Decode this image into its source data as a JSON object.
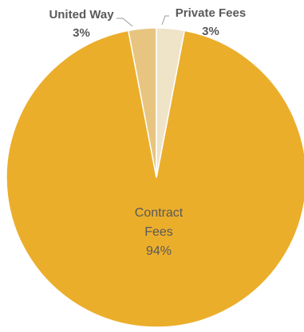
{
  "chart_data": {
    "type": "pie",
    "slices": [
      {
        "category": "Contract Fees",
        "label_lines": [
          "Contract",
          "Fees"
        ],
        "percent_label": "94%",
        "value": 94,
        "color": "#ebae2b"
      },
      {
        "category": "United Way",
        "label_lines": [
          "United Way"
        ],
        "percent_label": "3%",
        "value": 3,
        "color": "#e7c580"
      },
      {
        "category": "Private Fees",
        "label_lines": [
          "Private Fees"
        ],
        "percent_label": "3%",
        "value": 3,
        "color": "#efe3c8"
      }
    ],
    "start": "top",
    "direction": "counterclockwise",
    "legend": "none",
    "title": ""
  }
}
